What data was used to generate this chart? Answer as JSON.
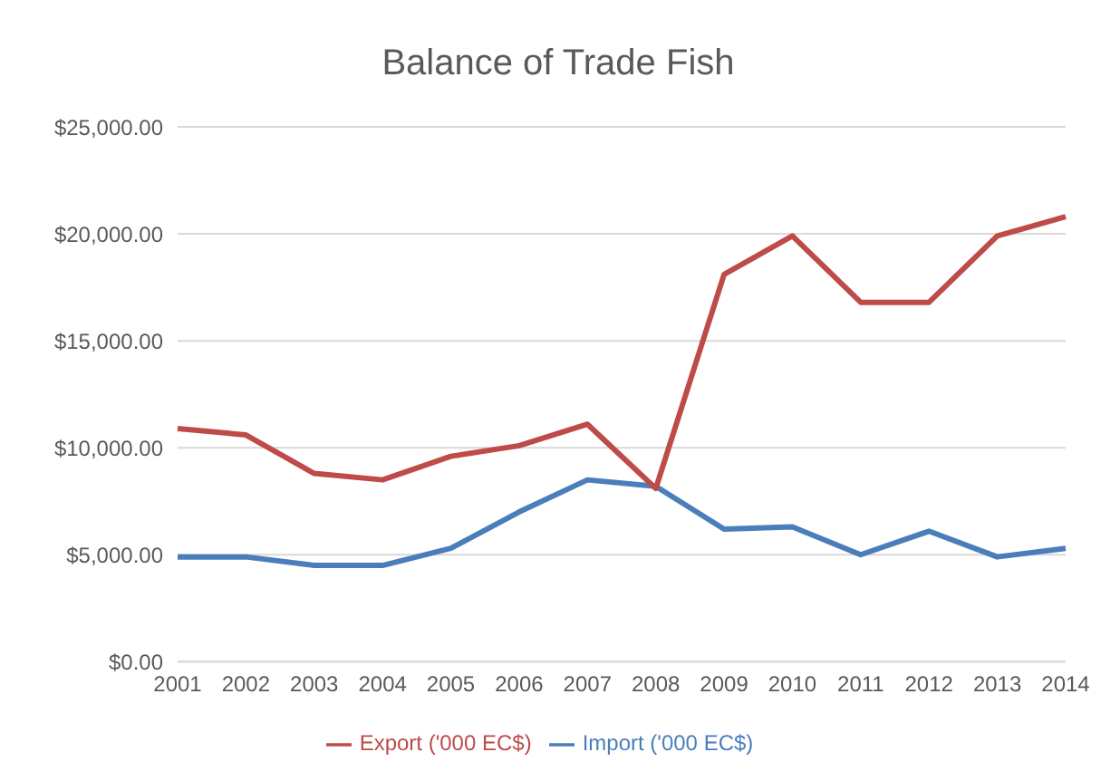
{
  "chart_data": {
    "type": "line",
    "title": "Balance of Trade Fish",
    "categories": [
      "2001",
      "2002",
      "2003",
      "2004",
      "2005",
      "2006",
      "2007",
      "2008",
      "2009",
      "2010",
      "2011",
      "2012",
      "2013",
      "2014"
    ],
    "series": [
      {
        "name": "Import ('000 EC$)",
        "color": "#4a7ebb",
        "values": [
          4900,
          4900,
          4500,
          4500,
          5300,
          7000,
          8500,
          8200,
          6200,
          6300,
          5000,
          6100,
          4900,
          5300
        ]
      },
      {
        "name": "Export ('000 EC$)",
        "color": "#be4b48",
        "values": [
          10900,
          10600,
          8800,
          8500,
          9600,
          10100,
          11100,
          8100,
          18100,
          19900,
          16800,
          16800,
          19900,
          20800
        ]
      }
    ],
    "ylim": [
      0,
      25000
    ],
    "yticks": [
      {
        "value": 0,
        "label": "$0.00"
      },
      {
        "value": 5000,
        "label": "$5,000.00"
      },
      {
        "value": 10000,
        "label": "$10,000.00"
      },
      {
        "value": 15000,
        "label": "$15,000.00"
      },
      {
        "value": 20000,
        "label": "$20,000.00"
      },
      {
        "value": 25000,
        "label": "$25,000.00"
      }
    ],
    "grid": "y",
    "legend": "bottom",
    "marker": "none",
    "line_style": "solid"
  }
}
